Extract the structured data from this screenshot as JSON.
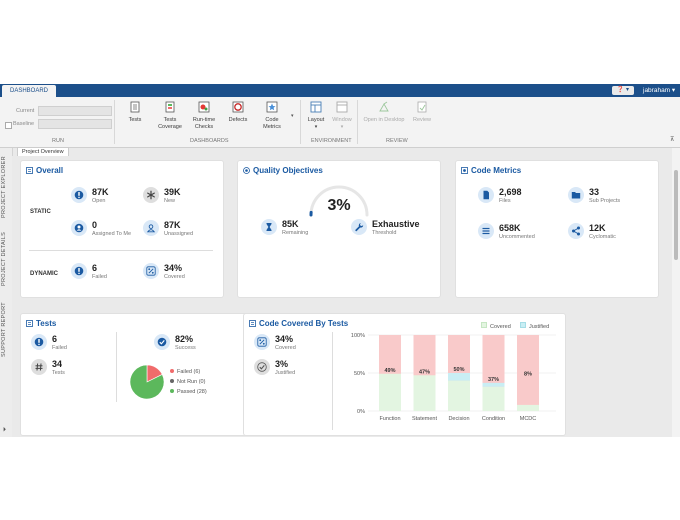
{
  "header": {
    "tab": "DASHBOARD",
    "help": "❓ ▾",
    "user": "jabraham ▾"
  },
  "toolstrip": {
    "run": {
      "current_label": "Current",
      "baseline_label": "Baseline",
      "group": "RUN"
    },
    "dashboards": {
      "items": [
        {
          "label": "Tests",
          "icon": "tests-icon"
        },
        {
          "label": "Tests\nCoverage",
          "icon": "tests-coverage-icon"
        },
        {
          "label": "Run-time\nChecks",
          "icon": "runtime-checks-icon"
        },
        {
          "label": "Defects",
          "icon": "defects-icon"
        },
        {
          "label": "Code\nMetrics",
          "icon": "code-metrics-icon"
        }
      ],
      "group": "DASHBOARDS"
    },
    "environment": {
      "layout": "Layout",
      "window": "Window",
      "group": "ENVIRONMENT"
    },
    "review": {
      "open_desktop": "Open in Desktop",
      "review": "Review",
      "group": "REVIEW"
    }
  },
  "sidebar": {
    "tabs": [
      "PROJECT EXPLORER",
      "PROJECT DETAILS",
      "SUPPORT REPORT"
    ]
  },
  "doc_tab": "Project Overview",
  "overall": {
    "title": "Overall",
    "static_label": "STATIC",
    "dynamic_label": "DYNAMIC",
    "open": {
      "value": "87K",
      "label": "Open"
    },
    "new": {
      "value": "39K",
      "label": "New"
    },
    "assigned": {
      "value": "0",
      "label": "Assigned To Me"
    },
    "unassigned": {
      "value": "87K",
      "label": "Unassigned"
    },
    "failed": {
      "value": "6",
      "label": "Failed"
    },
    "covered": {
      "value": "34%",
      "label": "Covered"
    }
  },
  "quality": {
    "title": "Quality Objectives",
    "percent": "3%",
    "gauge_fraction": 0.03,
    "remaining": {
      "value": "85K",
      "label": "Remaining"
    },
    "threshold": {
      "value": "Exhaustive",
      "label": "Threshold"
    }
  },
  "code_metrics": {
    "title": "Code Metrics",
    "files": {
      "value": "2,698",
      "label": "Files"
    },
    "subprojects": {
      "value": "33",
      "label": "Sub Projects"
    },
    "uncommented": {
      "value": "658K",
      "label": "Uncommented"
    },
    "cyclomatic": {
      "value": "12K",
      "label": "Cyclomatic"
    }
  },
  "tests": {
    "title": "Tests",
    "failed": {
      "value": "6",
      "label": "Failed"
    },
    "total": {
      "value": "34",
      "label": "Tests"
    },
    "success": {
      "value": "82%",
      "label": "Success"
    },
    "legend": {
      "failed": "Failed (6)",
      "notrun": "Not Run (0)",
      "passed": "Passed (28)"
    },
    "pie": {
      "failed": 6,
      "notrun": 0,
      "passed": 28
    },
    "colors": {
      "failed": "#f06b6b",
      "notrun": "#666666",
      "passed": "#5cb85c"
    }
  },
  "coverage": {
    "title": "Code Covered By Tests",
    "covered": {
      "value": "34%",
      "label": "Covered"
    },
    "justified": {
      "value": "3%",
      "label": "Justified"
    },
    "legend": {
      "covered": "Covered",
      "justified": "Justified"
    }
  },
  "chart_data": {
    "type": "bar",
    "categories": [
      "Function",
      "Statement",
      "Decision",
      "Condition",
      "MCDC"
    ],
    "series": [
      {
        "name": "Covered",
        "values": [
          49,
          47,
          40,
          32,
          8
        ]
      },
      {
        "name": "Justified",
        "values": [
          0,
          0,
          10,
          5,
          0
        ]
      }
    ],
    "data_labels": [
      "49%",
      "47%",
      "50%",
      "37%",
      "8%"
    ],
    "ylim": [
      0,
      100
    ],
    "yticks": [
      "0%",
      "50%",
      "100%"
    ],
    "colors": {
      "covered": "#e3f5e1",
      "justified": "#c9eef4",
      "uncovered": "#f9caca"
    }
  }
}
